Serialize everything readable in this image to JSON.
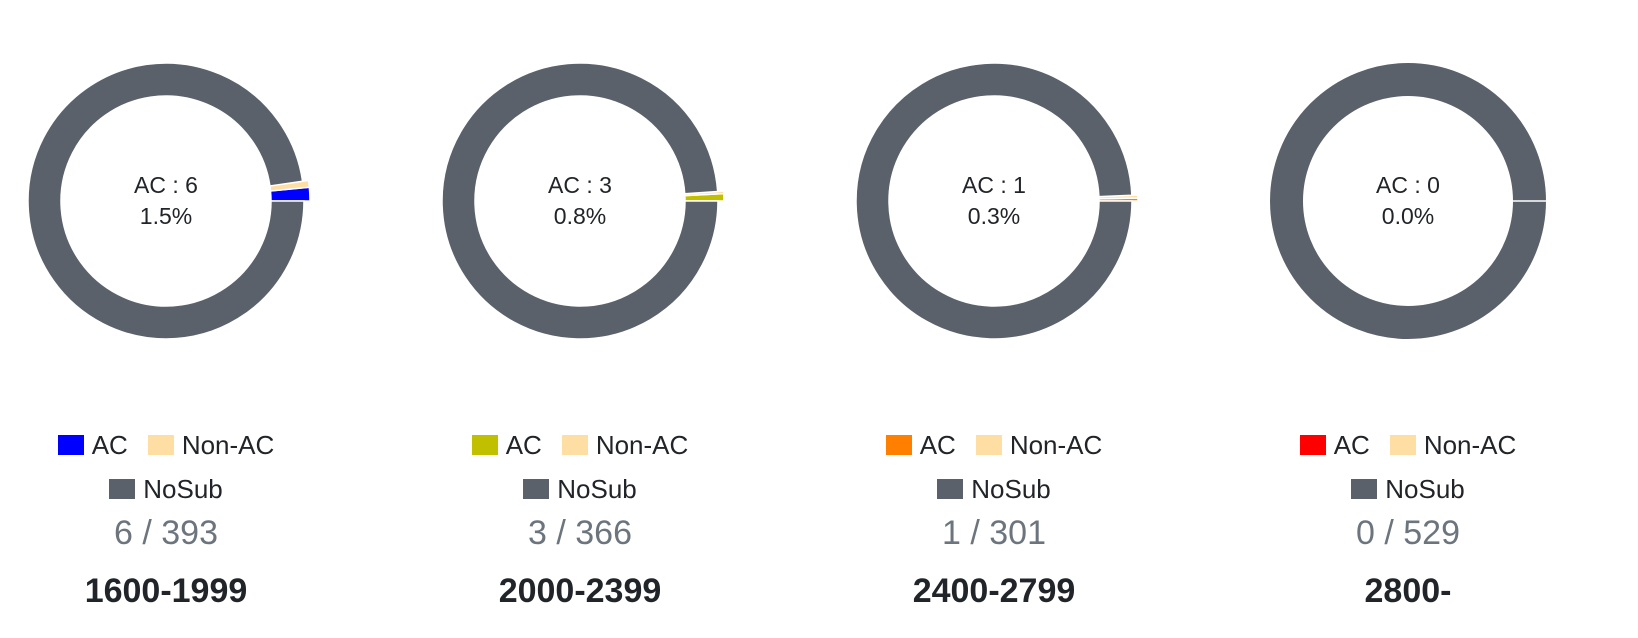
{
  "colors": {
    "nosub": "#5a616b",
    "nonac": "#ffdea3"
  },
  "chart_data": [
    {
      "type": "pie",
      "title": "1600-1999",
      "center_line1": "AC : 6",
      "center_line2": "1.5%",
      "count_text": "6 / 393",
      "categories": [
        "AC",
        "Non-AC",
        "NoSub"
      ],
      "values": [
        6,
        3,
        384
      ],
      "colors": [
        "#0000ff",
        "#ffdea3",
        "#5a616b"
      ],
      "legend": [
        {
          "label": "AC",
          "color": "#0000ff"
        },
        {
          "label": "Non-AC",
          "color": "#ffdea3"
        },
        {
          "label": "NoSub",
          "color": "#5a616b"
        }
      ]
    },
    {
      "type": "pie",
      "title": "2000-2399",
      "center_line1": "AC : 3",
      "center_line2": "0.8%",
      "count_text": "3 / 366",
      "categories": [
        "AC",
        "Non-AC",
        "NoSub"
      ],
      "values": [
        3,
        1,
        362
      ],
      "colors": [
        "#c0c000",
        "#ffdea3",
        "#5a616b"
      ],
      "legend": [
        {
          "label": "AC",
          "color": "#c0c000"
        },
        {
          "label": "Non-AC",
          "color": "#ffdea3"
        },
        {
          "label": "NoSub",
          "color": "#5a616b"
        }
      ]
    },
    {
      "type": "pie",
      "title": "2400-2799",
      "center_line1": "AC : 1",
      "center_line2": "0.3%",
      "count_text": "1 / 301",
      "categories": [
        "AC",
        "Non-AC",
        "NoSub"
      ],
      "values": [
        1,
        1,
        299
      ],
      "colors": [
        "#ff8000",
        "#ffdea3",
        "#5a616b"
      ],
      "legend": [
        {
          "label": "AC",
          "color": "#ff8000"
        },
        {
          "label": "Non-AC",
          "color": "#ffdea3"
        },
        {
          "label": "NoSub",
          "color": "#5a616b"
        }
      ]
    },
    {
      "type": "pie",
      "title": "2800-",
      "center_line1": "AC : 0",
      "center_line2": "0.0%",
      "count_text": "0 / 529",
      "categories": [
        "AC",
        "Non-AC",
        "NoSub"
      ],
      "values": [
        0,
        0,
        529
      ],
      "colors": [
        "#ff0000",
        "#ffdea3",
        "#5a616b"
      ],
      "legend": [
        {
          "label": "AC",
          "color": "#ff0000"
        },
        {
          "label": "Non-AC",
          "color": "#ffdea3"
        },
        {
          "label": "NoSub",
          "color": "#5a616b"
        }
      ]
    }
  ]
}
